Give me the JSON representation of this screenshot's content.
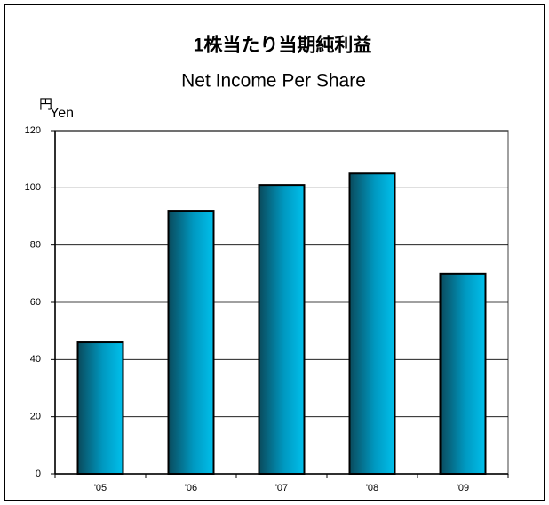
{
  "chart_data": {
    "type": "bar",
    "title": "1株当たり当期純利益",
    "subtitle": "Net Income Per Share",
    "y_unit": {
      "ja": "円",
      "en": "Yen"
    },
    "categories": [
      "'05",
      "'06",
      "'07",
      "'08",
      "'09"
    ],
    "values": [
      46,
      92,
      101,
      105,
      70
    ],
    "color": "#00c0ec",
    "ylim": [
      0,
      120
    ],
    "yticks": [
      0,
      20,
      40,
      60,
      80,
      100,
      120
    ],
    "grid": true
  }
}
